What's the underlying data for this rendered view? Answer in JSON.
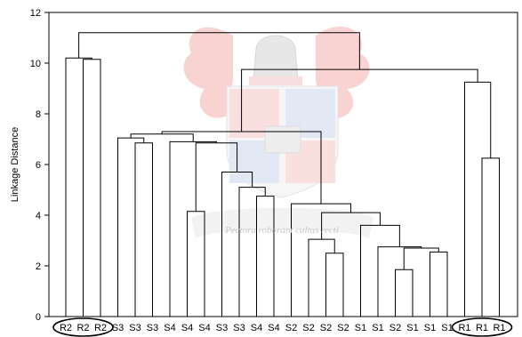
{
  "chart_data": {
    "type": "dendrogram",
    "ylabel": "Linkage Distance",
    "ylim": [
      0,
      12
    ],
    "yticks": [
      0,
      2,
      4,
      6,
      8,
      10,
      12
    ],
    "grid": false,
    "leaves": [
      "R2",
      "R2",
      "R2",
      "S3",
      "S3",
      "S3",
      "S4",
      "S4",
      "S4",
      "S3",
      "S3",
      "S4",
      "S4",
      "S2",
      "S2",
      "S2",
      "S2",
      "S1",
      "S1",
      "S2",
      "S1",
      "S1",
      "S1",
      "R1",
      "R1",
      "R1"
    ],
    "circled_groups": [
      [
        0,
        2
      ],
      [
        23,
        25
      ]
    ],
    "merges": [
      {
        "left": 1,
        "right": 2,
        "height": 10.15
      },
      {
        "left": 0,
        "right": "m0",
        "height": 10.2
      },
      {
        "left": 4,
        "right": 5,
        "height": 6.85
      },
      {
        "left": 3,
        "right": "m2",
        "height": 7.05
      },
      {
        "left": 7,
        "right": 8,
        "height": 4.15
      },
      {
        "left": 11,
        "right": 12,
        "height": 4.75
      },
      {
        "left": 10,
        "right": "m5",
        "height": 5.1
      },
      {
        "left": 9,
        "right": "m6",
        "height": 5.7
      },
      {
        "left": "m4",
        "right": "m7",
        "height": 6.85
      },
      {
        "left": 6,
        "right": "m8",
        "height": 6.9
      },
      {
        "left": "m3",
        "right": "m9",
        "height": 7.2
      },
      {
        "left": 15,
        "right": 16,
        "height": 2.5
      },
      {
        "left": 14,
        "right": "m11",
        "height": 3.05
      },
      {
        "left": 19,
        "right": 20,
        "height": 1.85
      },
      {
        "left": 21,
        "right": 22,
        "height": 2.55
      },
      {
        "left": "m13",
        "right": "m14",
        "height": 2.7
      },
      {
        "left": 18,
        "right": "m15",
        "height": 2.75
      },
      {
        "left": 17,
        "right": "m16",
        "height": 3.6
      },
      {
        "left": "m12",
        "right": "m17",
        "height": 4.1
      },
      {
        "left": 13,
        "right": "m18",
        "height": 4.45
      },
      {
        "left": "m10",
        "right": "m19",
        "height": 7.3
      },
      {
        "left": 24,
        "right": 25,
        "height": 6.25
      },
      {
        "left": 23,
        "right": "m21",
        "height": 9.25
      },
      {
        "left": "m20",
        "right": "m22",
        "height": 9.75
      },
      {
        "left": "m1",
        "right": "m23",
        "height": 11.2
      }
    ]
  },
  "watermark": {
    "motto": "Pectora roborant cultus recti"
  }
}
